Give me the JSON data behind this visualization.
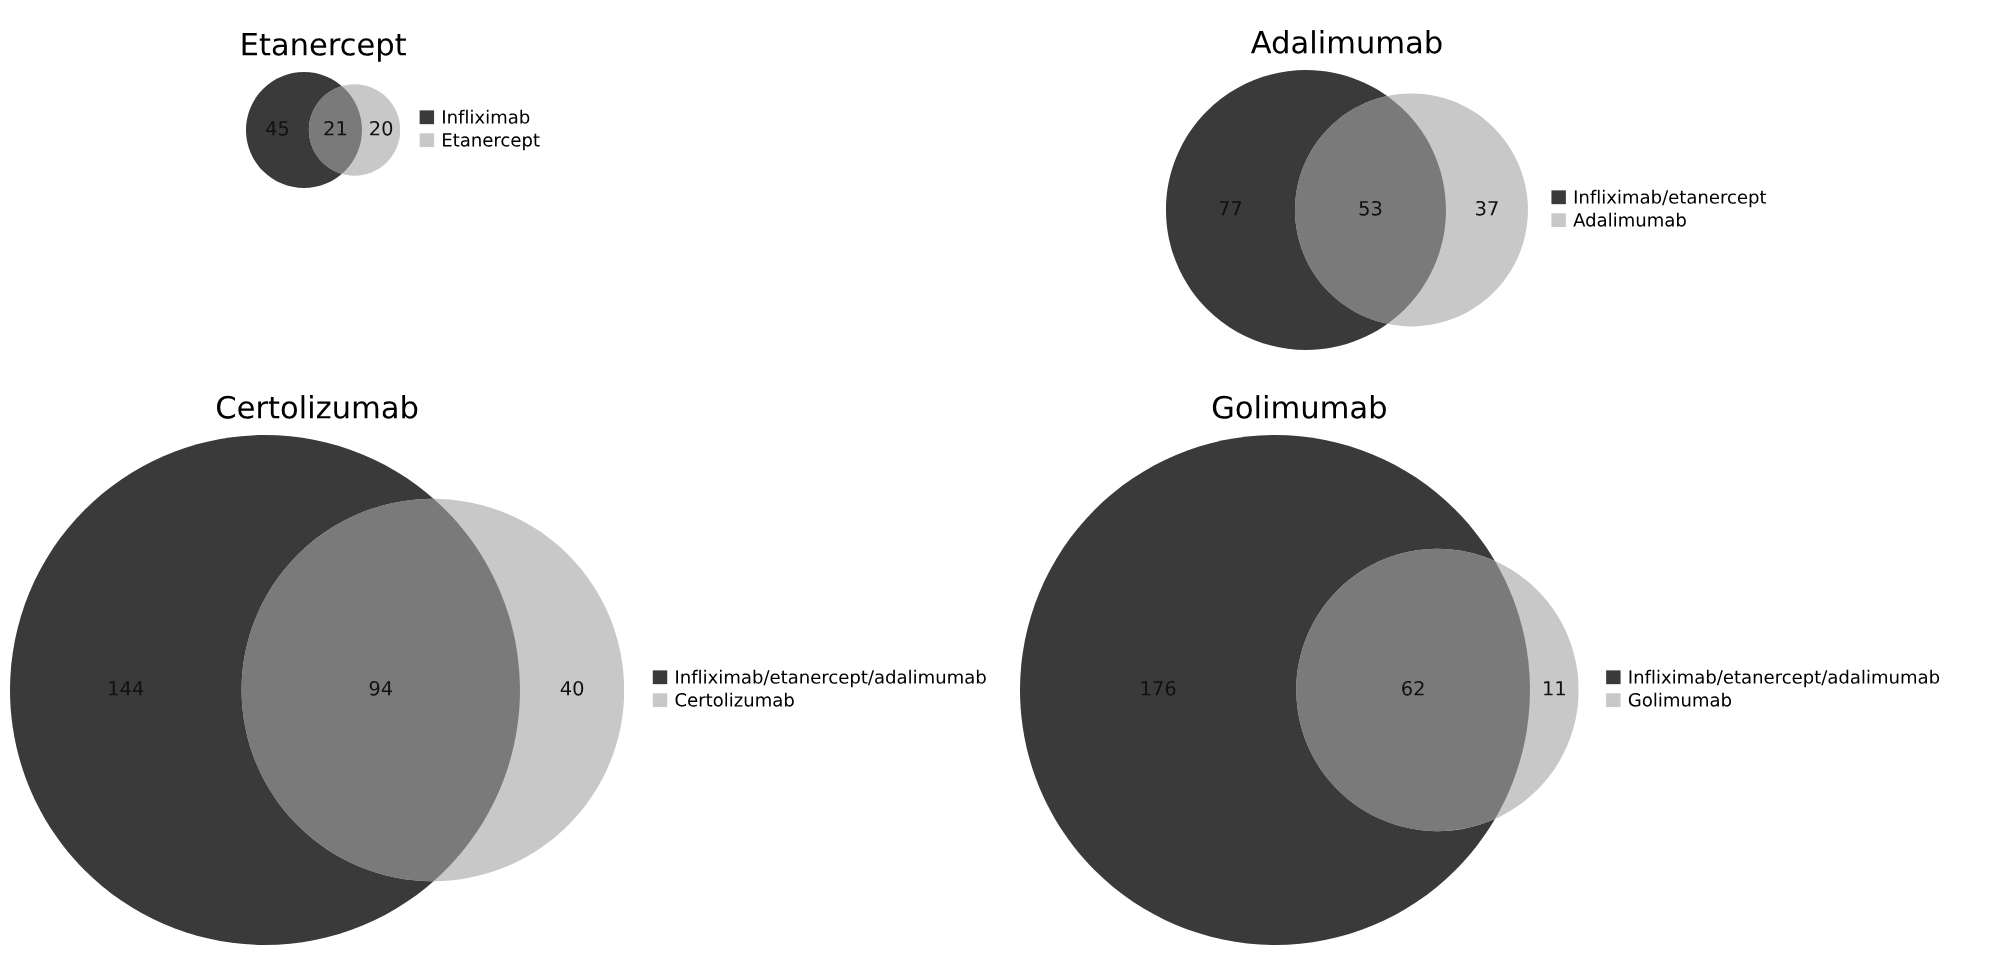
{
  "chart_data": [
    {
      "type": "other",
      "title": "Etanercept",
      "categories": [
        "Infliximab",
        null,
        "Etanercept"
      ],
      "values": [
        45,
        21,
        20
      ],
      "colors": [
        "#3a3a3a",
        "#7a7a7a",
        "#c8c8c8"
      ],
      "data_labels": true
    },
    {
      "type": "other",
      "title": "Adalimumab",
      "categories": [
        "Infliximab/etanercept",
        null,
        "Adalimumab"
      ],
      "values": [
        77,
        53,
        37
      ],
      "colors": [
        "#3a3a3a",
        "#7a7a7a",
        "#c8c8c8"
      ],
      "data_labels": true
    },
    {
      "type": "other",
      "title": "Certolizumab",
      "categories": [
        "Infliximab/etanercept/adalimumab",
        null,
        "Certolizumab"
      ],
      "values": [
        144,
        94,
        40
      ],
      "colors": [
        "#3a3a3a",
        "#7a7a7a",
        "#c8c8c8"
      ],
      "data_labels": true
    },
    {
      "type": "other",
      "title": "Golimumab",
      "categories": [
        "Infliximab/etanercept/adalimumab",
        null,
        "Golimumab"
      ],
      "values": [
        176,
        62,
        11
      ],
      "colors": [
        "#3a3a3a",
        "#7a7a7a",
        "#c8c8c8"
      ],
      "data_labels": true
    }
  ]
}
